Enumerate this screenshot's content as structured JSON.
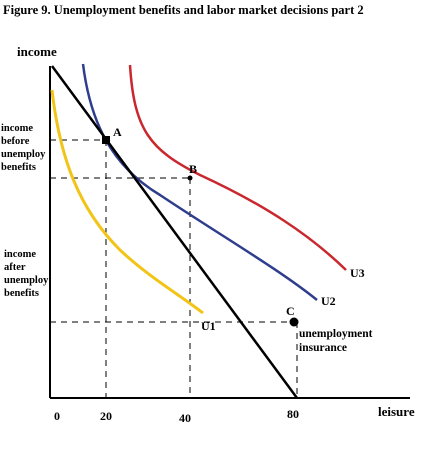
{
  "title": "Figure 9. Unemployment benefits and labor market decisions part 2",
  "axes": {
    "y_label": "income",
    "x_label": "leisure",
    "x_ticks": [
      "0",
      "20",
      "40",
      "80"
    ]
  },
  "y_annotations": {
    "before": [
      "income",
      "before",
      "unemploy",
      "benefits"
    ],
    "after": [
      "income",
      "after",
      "unemploy",
      "benefits"
    ]
  },
  "points": {
    "a": "A",
    "b": "B",
    "c": "C"
  },
  "curves": {
    "u1": "U1",
    "u2": "U2",
    "u3": "U3"
  },
  "insurance_label": [
    "unemployment",
    "insurance"
  ],
  "colors": {
    "u1": "#f2c417",
    "u2": "#2f3e8c",
    "u3": "#c8282e",
    "budget": "#000000"
  }
}
